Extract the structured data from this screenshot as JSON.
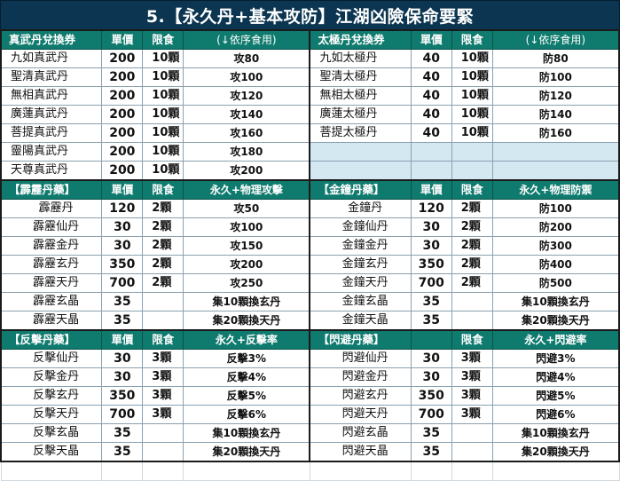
{
  "title": "5.【永久丹+基本攻防】江湖凶險保命要緊",
  "sections": [
    {
      "left": {
        "header": [
          "真武丹兌換券",
          "單價",
          "限食",
          "(↓依序食用)"
        ],
        "rows": [
          [
            "九如真武丹",
            "200",
            "10顆",
            "攻80"
          ],
          [
            "聖清真武丹",
            "200",
            "10顆",
            "攻100"
          ],
          [
            "無相真武丹",
            "200",
            "10顆",
            "攻120"
          ],
          [
            "廣蓮真武丹",
            "200",
            "10顆",
            "攻140"
          ],
          [
            "菩提真武丹",
            "200",
            "10顆",
            "攻160"
          ],
          [
            "靈陽真武丹",
            "200",
            "10顆",
            "攻180"
          ],
          [
            "天尊真武丹",
            "200",
            "10顆",
            "攻200"
          ]
        ]
      },
      "right": {
        "header": [
          "太極丹兌換券",
          "單價",
          "限食",
          "(↓依序食用)"
        ],
        "rows": [
          [
            "九如太極丹",
            "40",
            "10顆",
            "防80"
          ],
          [
            "聖清太極丹",
            "40",
            "10顆",
            "防100"
          ],
          [
            "無相太極丹",
            "40",
            "10顆",
            "防120"
          ],
          [
            "廣蓮太極丹",
            "40",
            "10顆",
            "防140"
          ],
          [
            "菩提太極丹",
            "40",
            "10顆",
            "防160"
          ],
          [
            "",
            "",
            "",
            ""
          ],
          [
            "",
            "",
            "",
            ""
          ]
        ]
      }
    },
    {
      "left": {
        "header": [
          "【霹靂丹藥】",
          "單價",
          "限食",
          "永久+物理攻擊"
        ],
        "rows": [
          [
            "霹靂丹",
            "120",
            "2顆",
            "攻50"
          ],
          [
            "霹靂仙丹",
            "30",
            "2顆",
            "攻100"
          ],
          [
            "霹靂金丹",
            "30",
            "2顆",
            "攻150"
          ],
          [
            "霹靂玄丹",
            "350",
            "2顆",
            "攻200"
          ],
          [
            "霹靂天丹",
            "700",
            "2顆",
            "攻250"
          ],
          [
            "霹靂玄晶",
            "35",
            "",
            "集10顆換玄丹"
          ],
          [
            "霹靂天晶",
            "35",
            "",
            "集20顆換天丹"
          ]
        ]
      },
      "right": {
        "header": [
          "【金鐘丹藥】",
          "單價",
          "限食",
          "永久+物理防禦"
        ],
        "rows": [
          [
            "金鐘丹",
            "120",
            "2顆",
            "防100"
          ],
          [
            "金鐘仙丹",
            "30",
            "2顆",
            "防200"
          ],
          [
            "金鐘金丹",
            "30",
            "2顆",
            "防300"
          ],
          [
            "金鐘玄丹",
            "350",
            "2顆",
            "防400"
          ],
          [
            "金鐘天丹",
            "700",
            "2顆",
            "防500"
          ],
          [
            "金鐘玄晶",
            "35",
            "",
            "集10顆換玄丹"
          ],
          [
            "金鐘天晶",
            "35",
            "",
            "集20顆換天丹"
          ]
        ]
      }
    },
    {
      "left": {
        "header": [
          "【反擊丹藥】",
          "單價",
          "限食",
          "永久+反擊率"
        ],
        "rows": [
          [
            "反擊仙丹",
            "30",
            "3顆",
            "反擊3%"
          ],
          [
            "反擊金丹",
            "30",
            "3顆",
            "反擊4%"
          ],
          [
            "反擊玄丹",
            "350",
            "3顆",
            "反擊5%"
          ],
          [
            "反擊天丹",
            "700",
            "3顆",
            "反擊6%"
          ],
          [
            "反擊玄晶",
            "35",
            "",
            "集10顆換玄丹"
          ],
          [
            "反擊天晶",
            "35",
            "",
            "集20顆換天丹"
          ]
        ]
      },
      "right": {
        "header": [
          "【閃避丹藥】",
          "",
          "限食",
          "永久+閃避率"
        ],
        "rows": [
          [
            "閃避仙丹",
            "30",
            "3顆",
            "閃避3%"
          ],
          [
            "閃避金丹",
            "30",
            "3顆",
            "閃避4%"
          ],
          [
            "閃避玄丹",
            "350",
            "3顆",
            "閃避5%"
          ],
          [
            "閃避天丹",
            "700",
            "3顆",
            "閃避6%"
          ],
          [
            "閃避玄晶",
            "35",
            "",
            "集10顆換玄丹"
          ],
          [
            "閃避天晶",
            "35",
            "",
            "集20顆換天丹"
          ]
        ]
      }
    }
  ]
}
